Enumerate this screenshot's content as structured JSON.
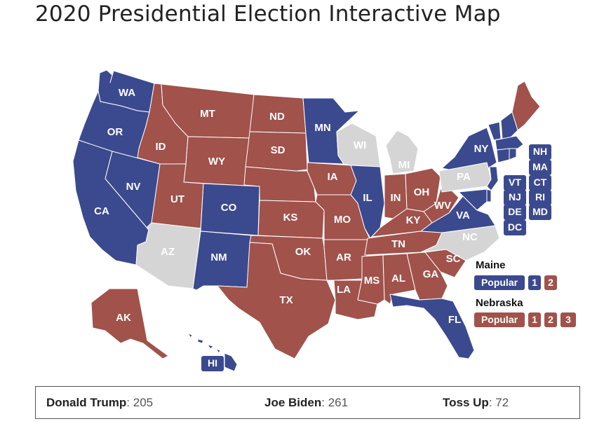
{
  "title": "2020 Presidential Election Interactive Map",
  "colors": {
    "dem": "#3b4a8e",
    "rep": "#a0524b",
    "toss": "#d5d5d5",
    "small_state_box_fill": "#3b4a8e"
  },
  "states": {
    "WA": {
      "label": "WA",
      "party": "dem"
    },
    "OR": {
      "label": "OR",
      "party": "dem"
    },
    "CA": {
      "label": "CA",
      "party": "dem"
    },
    "NV": {
      "label": "NV",
      "party": "dem"
    },
    "ID": {
      "label": "ID",
      "party": "rep"
    },
    "MT": {
      "label": "MT",
      "party": "rep"
    },
    "WY": {
      "label": "WY",
      "party": "rep"
    },
    "UT": {
      "label": "UT",
      "party": "rep"
    },
    "AZ": {
      "label": "AZ",
      "party": "toss"
    },
    "CO": {
      "label": "CO",
      "party": "dem"
    },
    "NM": {
      "label": "NM",
      "party": "dem"
    },
    "ND": {
      "label": "ND",
      "party": "rep"
    },
    "SD": {
      "label": "SD",
      "party": "rep"
    },
    "NE": {
      "label": "",
      "party": "rep"
    },
    "KS": {
      "label": "KS",
      "party": "rep"
    },
    "OK": {
      "label": "OK",
      "party": "rep"
    },
    "TX": {
      "label": "TX",
      "party": "rep"
    },
    "MN": {
      "label": "MN",
      "party": "dem"
    },
    "IA": {
      "label": "IA",
      "party": "rep"
    },
    "MO": {
      "label": "MO",
      "party": "rep"
    },
    "AR": {
      "label": "AR",
      "party": "rep"
    },
    "LA": {
      "label": "LA",
      "party": "rep"
    },
    "WI": {
      "label": "WI",
      "party": "toss"
    },
    "IL": {
      "label": "IL",
      "party": "dem"
    },
    "MI": {
      "label": "MI",
      "party": "toss"
    },
    "IN": {
      "label": "IN",
      "party": "rep"
    },
    "OH": {
      "label": "OH",
      "party": "rep"
    },
    "KY": {
      "label": "KY",
      "party": "rep"
    },
    "TN": {
      "label": "TN",
      "party": "rep"
    },
    "MS": {
      "label": "MS",
      "party": "rep"
    },
    "AL": {
      "label": "AL",
      "party": "rep"
    },
    "GA": {
      "label": "GA",
      "party": "rep"
    },
    "FL": {
      "label": "FL",
      "party": "dem"
    },
    "SC": {
      "label": "SC",
      "party": "rep"
    },
    "NC": {
      "label": "NC",
      "party": "toss"
    },
    "VA": {
      "label": "VA",
      "party": "dem"
    },
    "WV": {
      "label": "WV",
      "party": "rep"
    },
    "PA": {
      "label": "PA",
      "party": "toss"
    },
    "NY": {
      "label": "NY",
      "party": "dem"
    },
    "ME": {
      "label": "",
      "party": "rep"
    },
    "NH": {
      "label": "NH",
      "party": "dem"
    },
    "VT": {
      "label": "VT",
      "party": "dem"
    },
    "MA": {
      "label": "MA",
      "party": "dem"
    },
    "CT": {
      "label": "CT",
      "party": "dem"
    },
    "RI": {
      "label": "RI",
      "party": "dem"
    },
    "NJ": {
      "label": "NJ",
      "party": "dem"
    },
    "DE": {
      "label": "DE",
      "party": "dem"
    },
    "MD": {
      "label": "MD",
      "party": "dem"
    },
    "DC": {
      "label": "DC",
      "party": "dem"
    },
    "AK": {
      "label": "AK",
      "party": "rep"
    },
    "HI": {
      "label": "HI",
      "party": "dem"
    }
  },
  "small_state_boxes": [
    "NH",
    "MA",
    "VT",
    "CT",
    "NJ",
    "RI",
    "DE",
    "MD",
    "DC"
  ],
  "maine": {
    "title": "Maine",
    "popular_label": "Popular",
    "district_1": "1",
    "district_2": "2",
    "popular_party": "dem",
    "district_1_party": "dem",
    "district_2_party": "rep"
  },
  "nebraska": {
    "title": "Nebraska",
    "popular_label": "Popular",
    "district_1": "1",
    "district_2": "2",
    "district_3": "3",
    "popular_party": "rep",
    "district_1_party": "rep",
    "district_2_party": "rep",
    "district_3_party": "rep"
  },
  "tally": {
    "trump_name": "Donald Trump",
    "trump_votes": "205",
    "biden_name": "Joe Biden",
    "biden_votes": "261",
    "toss_name": "Toss Up",
    "toss_votes": "72",
    "separator": ": "
  }
}
